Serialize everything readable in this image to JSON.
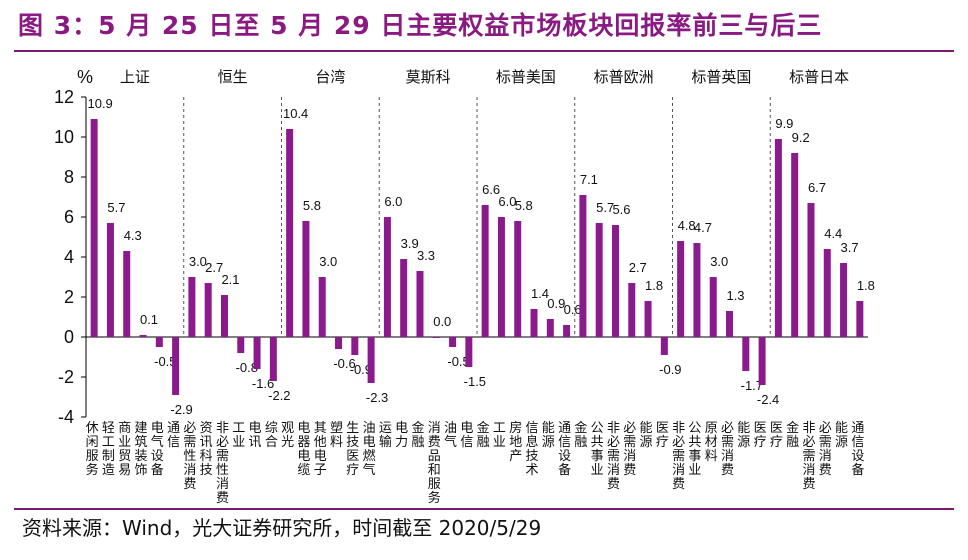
{
  "title": "图 3：5 月 25 日至 5 月 29 日主要权益市场板块回报率前三与后三",
  "source": "资料来源：Wind，光大证券研究所，时间截至 2020/5/29",
  "colors": {
    "bar": "#8B1A8C",
    "title": "#8a1a82",
    "rule": "#7a1a72",
    "axis": "#000000"
  },
  "chart_data": {
    "type": "bar",
    "ylabel": "%",
    "ylim": [
      -4,
      12
    ],
    "yticks": [
      -4,
      -2,
      0,
      2,
      4,
      6,
      8,
      10,
      12
    ],
    "markets": [
      {
        "name": "上证",
        "categories": [
          "休闲服务",
          "轻工制造",
          "商业贸易",
          "建筑装饰",
          "电气设备",
          "通信"
        ],
        "values": [
          10.9,
          5.7,
          4.3,
          0.1,
          -0.5,
          -2.9
        ]
      },
      {
        "name": "恒生",
        "categories": [
          "必需性消费",
          "资讯科技",
          "非必需性消费",
          "工业",
          "电讯",
          "综合"
        ],
        "values": [
          3.0,
          2.7,
          2.1,
          -0.8,
          -1.6,
          -2.2
        ]
      },
      {
        "name": "台湾",
        "categories": [
          "观光",
          "电器电缆",
          "其他电子",
          "塑料",
          "生技医疗",
          "油电燃气"
        ],
        "values": [
          10.4,
          5.8,
          3.0,
          -0.6,
          -0.9,
          -2.3
        ]
      },
      {
        "name": "莫斯科",
        "categories": [
          "运输",
          "电力",
          "金融",
          "消费品和服务",
          "油气",
          "电信"
        ],
        "values": [
          6.0,
          3.9,
          3.3,
          0.0,
          -0.5,
          -1.5
        ]
      },
      {
        "name": "标普美国",
        "categories": [
          "金融",
          "工业",
          "房地产",
          "信息技术",
          "能源",
          "通信设备"
        ],
        "values": [
          6.6,
          6.0,
          5.8,
          1.4,
          0.9,
          0.6
        ]
      },
      {
        "name": "标普欧洲",
        "categories": [
          "金融",
          "公共事业",
          "非必需消费",
          "必需消费",
          "能源",
          "医疗"
        ],
        "values": [
          7.1,
          5.7,
          5.6,
          2.7,
          1.8,
          -0.9
        ]
      },
      {
        "name": "标普英国",
        "categories": [
          "非必需消费",
          "公共事业",
          "原材料",
          "必需消费",
          "能源",
          "医疗"
        ],
        "values": [
          4.8,
          4.7,
          3.0,
          1.3,
          -1.7,
          -2.4
        ]
      },
      {
        "name": "标普日本",
        "categories": [
          "医疗",
          "金融",
          "非必需消费",
          "必需消费",
          "能源",
          "通信设备"
        ],
        "values": [
          9.9,
          9.2,
          6.7,
          4.4,
          3.7,
          1.8
        ]
      }
    ]
  }
}
